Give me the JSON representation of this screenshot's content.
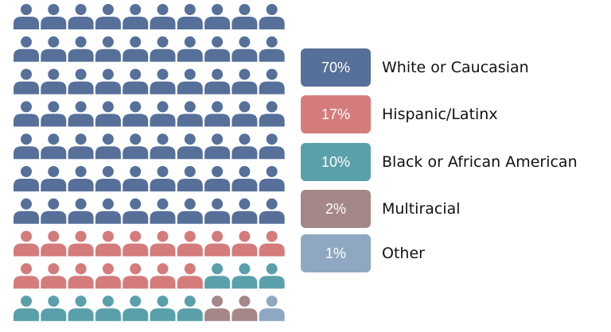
{
  "chart_data": {
    "type": "waffle",
    "total_icons": 100,
    "columns": 10,
    "rows": 10,
    "icon": "person-icon",
    "legend_placement": "right",
    "series": [
      {
        "name": "White or Caucasian",
        "percent_label": "70%",
        "value": 70,
        "color": "#56709a"
      },
      {
        "name": "Hispanic/Latinx",
        "percent_label": "17%",
        "value": 17,
        "color": "#d47b7b"
      },
      {
        "name": "Black or African American",
        "percent_label": "10%",
        "value": 10,
        "color": "#5aa0ab"
      },
      {
        "name": "Multiracial",
        "percent_label": "2%",
        "value": 2,
        "color": "#a58787"
      },
      {
        "name": "Other",
        "percent_label": "1%",
        "value": 1,
        "color": "#8fa8c2"
      }
    ]
  }
}
